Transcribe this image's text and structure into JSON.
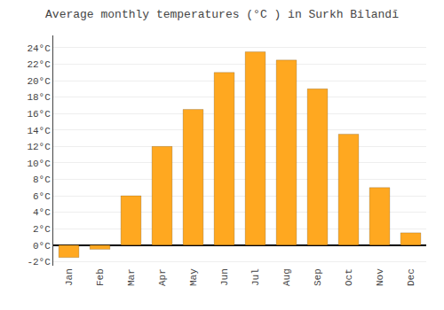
{
  "chart_data": {
    "type": "bar",
    "title": "Average monthly temperatures (°C ) in Surkh Bilandī",
    "categories": [
      "Jan",
      "Feb",
      "Mar",
      "Apr",
      "May",
      "Jun",
      "Jul",
      "Aug",
      "Sep",
      "Oct",
      "Nov",
      "Dec"
    ],
    "values": [
      -1.5,
      -0.5,
      6.0,
      12.0,
      16.5,
      21.0,
      23.5,
      22.5,
      19.0,
      13.5,
      7.0,
      1.5
    ],
    "color": "#FFA820",
    "ylim": [
      -2.5,
      25.5
    ],
    "yticks": [
      {
        "value": -2,
        "label": "-2°C"
      },
      {
        "value": 0,
        "label": "0°C"
      },
      {
        "value": 2,
        "label": "2°C"
      },
      {
        "value": 4,
        "label": "4°C"
      },
      {
        "value": 6,
        "label": "6°C"
      },
      {
        "value": 8,
        "label": "8°C"
      },
      {
        "value": 10,
        "label": "10°C"
      },
      {
        "value": 12,
        "label": "12°C"
      },
      {
        "value": 14,
        "label": "14°C"
      },
      {
        "value": 16,
        "label": "16°C"
      },
      {
        "value": 18,
        "label": "18°C"
      },
      {
        "value": 20,
        "label": "20°C"
      },
      {
        "value": 22,
        "label": "22°C"
      },
      {
        "value": 24,
        "label": "24°C"
      }
    ],
    "grid": true
  }
}
